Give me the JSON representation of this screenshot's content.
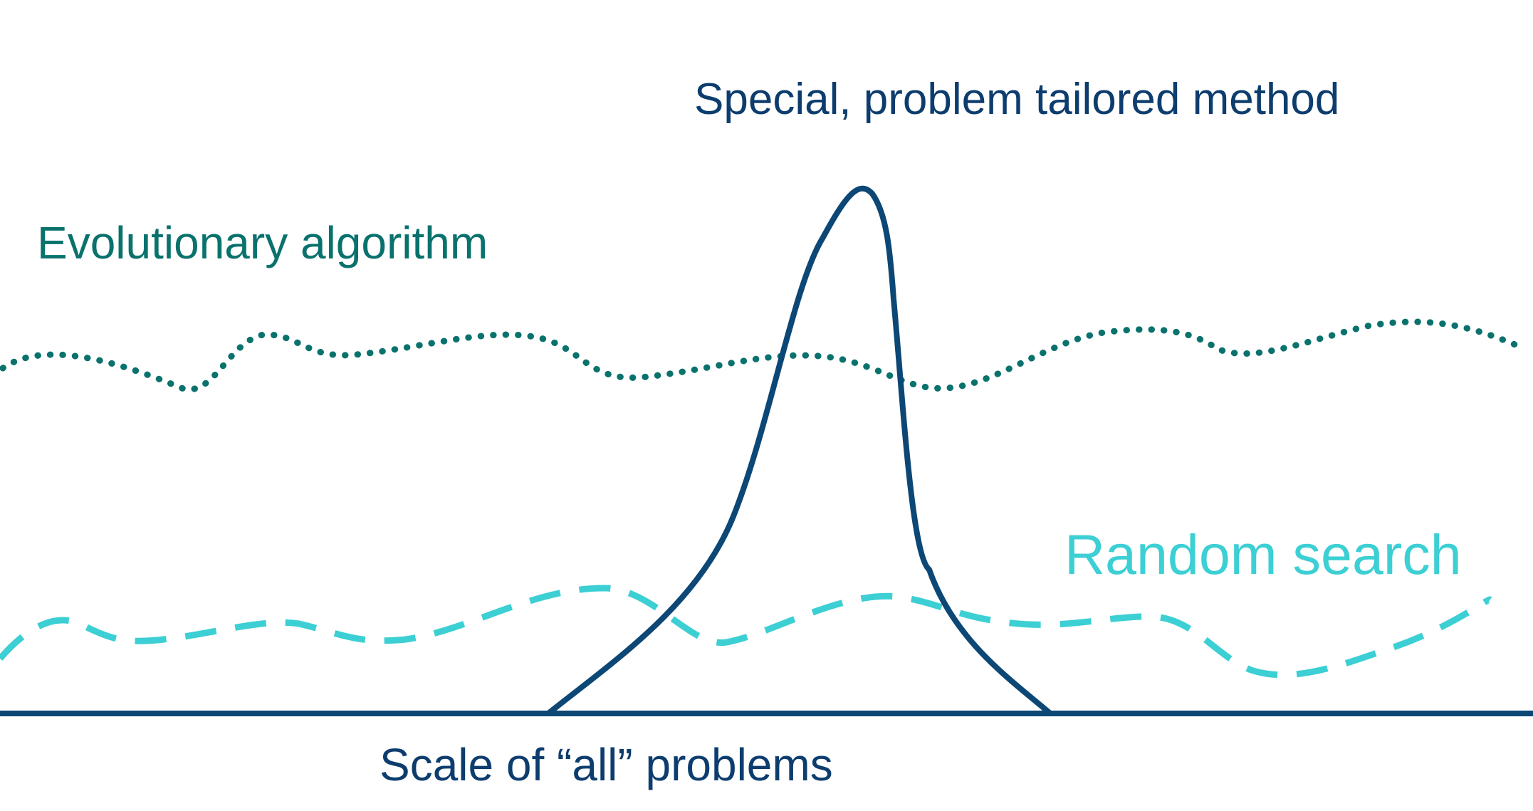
{
  "labels": {
    "special_method": "Special, problem tailored method",
    "evolutionary": "Evolutionary algorithm",
    "random_search": "Random search",
    "axis": "Scale of “all” problems"
  },
  "colors": {
    "navy": "#0d3d6e",
    "axis": "#0c4775",
    "teal": "#0a726d",
    "cyan": "#3ccfd4",
    "peak_curve": "#0c4775"
  }
}
